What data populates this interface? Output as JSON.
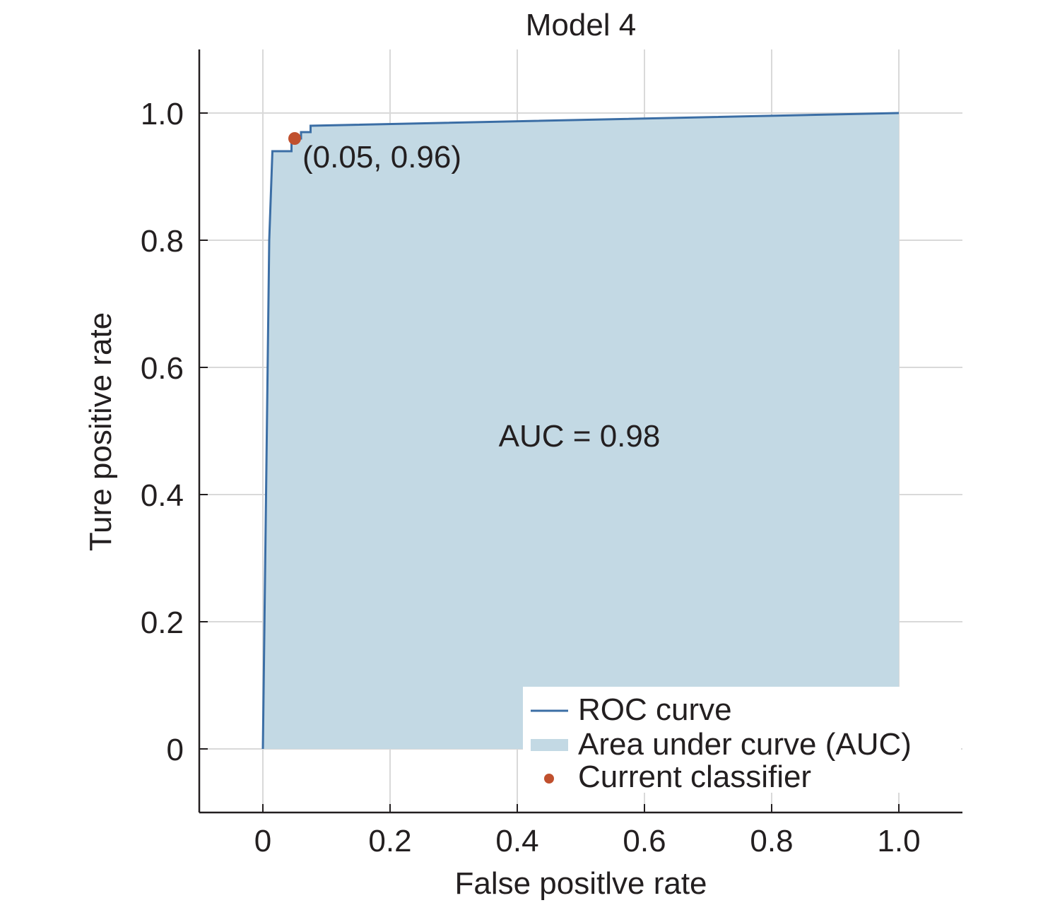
{
  "chart_data": {
    "type": "area",
    "title": "Model 4",
    "xlabel": "False positlve rate",
    "ylabel": "Ture positive rate",
    "xlim": [
      -0.1,
      1.1
    ],
    "ylim": [
      -0.1,
      1.1
    ],
    "grid": true,
    "x_ticks": [
      0,
      0.2,
      0.4,
      0.6,
      0.8,
      1.0
    ],
    "x_tick_labels": [
      "0",
      "0.2",
      "0.4",
      "0.6",
      "0.8",
      "1.0"
    ],
    "y_ticks": [
      0,
      0.2,
      0.4,
      0.6,
      0.8,
      1.0
    ],
    "y_tick_labels": [
      "0",
      "0.2",
      "0.4",
      "0.6",
      "0.8",
      "1.0"
    ],
    "series": [
      {
        "name": "ROC curve",
        "kind": "line",
        "color": "#3b6ea5",
        "x": [
          0,
          0.01,
          0.015,
          0.045,
          0.045,
          0.06,
          0.06,
          0.075,
          0.075,
          1.0
        ],
        "y": [
          0,
          0.8,
          0.94,
          0.94,
          0.96,
          0.96,
          0.97,
          0.97,
          0.98,
          1.0
        ]
      },
      {
        "name": "Area under curve (AUC)",
        "kind": "area",
        "color": "#c3d9e4"
      },
      {
        "name": "Current classifier",
        "kind": "point",
        "color": "#c0502e",
        "x": [
          0.05
        ],
        "y": [
          0.96
        ]
      }
    ],
    "annotations": {
      "point_label": "(0.05, 0.96)",
      "auc_label": "AUC = 0.98"
    },
    "legend": {
      "position": "bottom-right",
      "entries": [
        "ROC curve",
        "Area under curve (AUC)",
        "Current classifier"
      ]
    }
  }
}
